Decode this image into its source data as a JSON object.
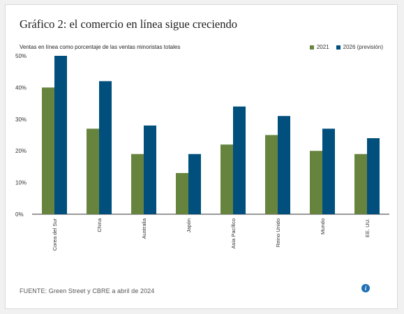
{
  "title": "Gráfico 2: el comercio en línea sigue creciendo",
  "source": "FUENTE: Green Street y CBRE a abril de 2024",
  "info_icon": "info-icon",
  "chart_data": {
    "type": "bar",
    "title": "Gráfico 2: el comercio en línea sigue creciendo",
    "ylabel": "Ventas en línea como porcentaje de las ventas minoristas totales",
    "xlabel": "",
    "ylim": [
      0,
      50
    ],
    "yticks": [
      "0%",
      "10%",
      "20%",
      "30%",
      "40%",
      "50%"
    ],
    "legend_position": "top-right",
    "categories": [
      "Corea del Sur",
      "China",
      "Australia",
      "Japón",
      "Asia Pacífico",
      "Reino Unido",
      "Mundo",
      "EE. UU."
    ],
    "series": [
      {
        "name": "2021",
        "color": "#67843f",
        "values": [
          40,
          27,
          19,
          13,
          22,
          25,
          20,
          19
        ]
      },
      {
        "name": "2026 (previsión)",
        "color": "#004f7c",
        "values": [
          50,
          42,
          28,
          19,
          34,
          31,
          27,
          24
        ]
      }
    ],
    "grid": false
  }
}
